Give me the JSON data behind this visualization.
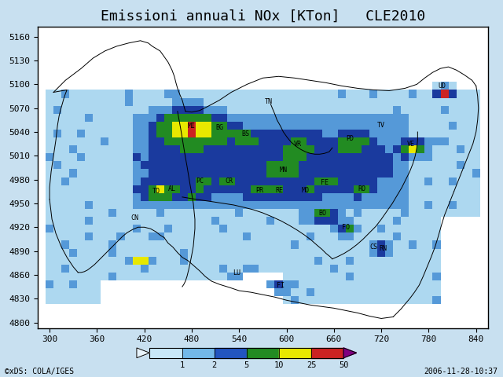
{
  "title": "Emissioni annuali NOx [KTon]   CLE2010",
  "xlabel_ticks": [
    300,
    360,
    420,
    480,
    540,
    600,
    660,
    720,
    780,
    840
  ],
  "ylabel_ticks": [
    4800,
    4830,
    4860,
    4890,
    4920,
    4950,
    4980,
    5010,
    5040,
    5070,
    5100,
    5130,
    5160
  ],
  "colorbar_levels": [
    0,
    1,
    2,
    5,
    10,
    25,
    50,
    999
  ],
  "colorbar_colors": [
    "#ffffff",
    "#add8f0",
    "#5599d8",
    "#1a3a9e",
    "#228b22",
    "#e8e800",
    "#cc2222",
    "#800080"
  ],
  "colorbar_seg_colors": [
    "#c8e8f8",
    "#72b8e8",
    "#2255c0",
    "#228b22",
    "#e8e800",
    "#cc2222"
  ],
  "colorbar_seg_labels": [
    "1",
    "2",
    "5",
    "10",
    "25",
    "50"
  ],
  "footer_left": "©xDS: COLA/IGES",
  "footer_right": "2006-11-28-10:37",
  "title_fontsize": 13,
  "tick_fontsize": 8,
  "footer_fontsize": 7,
  "xlim": [
    285,
    855
  ],
  "ylim": [
    4793,
    5173
  ],
  "grid_color": "#aaccee",
  "map_bg": "#d4ecfa"
}
